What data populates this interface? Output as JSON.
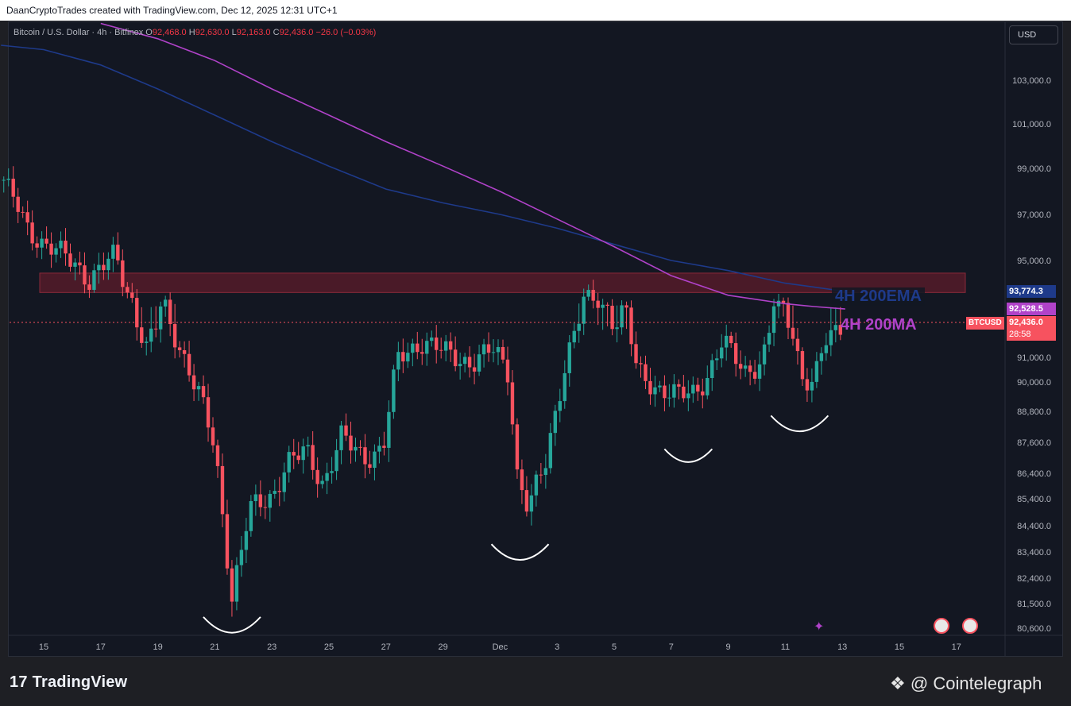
{
  "header": {
    "attribution": "DaanCryptoTrades created with TradingView.com, Dec 12, 2025 12:31 UTC+1"
  },
  "legend": {
    "symbol": "Bitcoin / U.S. Dollar · 4h · Bitfinex",
    "o_label": "O",
    "o": "92,468.0",
    "h_label": "H",
    "h": "92,630.0",
    "l_label": "L",
    "l": "92,163.0",
    "c_label": "C",
    "c": "92,436.0",
    "change": "−26.0 (−0.03%)"
  },
  "currency_button": "USD",
  "price_labels": {
    "ema": "93,774.3",
    "ma": "92,528.5",
    "ticker": "BTCUSD",
    "last": "92,436.0",
    "countdown": "28:58"
  },
  "annotations": {
    "ema_text": "4H 200EMA",
    "ma_text": "4H 200MA"
  },
  "branding": {
    "tradingview": "TradingView",
    "cointelegraph": "Cointelegraph"
  },
  "colors": {
    "up": "#26a69a",
    "down": "#f7525f",
    "ema": "#1e3a8a",
    "ma": "#b042c9",
    "zone": "#5c1f2a",
    "background": "#131722"
  },
  "chart_data": {
    "type": "candlestick",
    "timeframe": "4h",
    "x_tick_labels": [
      "15",
      "17",
      "19",
      "21",
      "23",
      "25",
      "27",
      "29",
      "Dec",
      "3",
      "5",
      "7",
      "9",
      "11",
      "13",
      "15",
      "17"
    ],
    "x_tick_days": [
      15,
      17,
      19,
      21,
      23,
      25,
      27,
      29,
      31,
      33,
      35,
      37,
      39,
      41,
      43,
      45,
      47
    ],
    "y_tick_labels": [
      "103,000.0",
      "101,000.0",
      "99,000.0",
      "97,000.0",
      "95,000.0",
      "91,000.0",
      "90,000.0",
      "88,800.0",
      "87,600.0",
      "86,400.0",
      "85,400.0",
      "84,400.0",
      "83,400.0",
      "82,400.0",
      "81,500.0",
      "80,600.0"
    ],
    "y_ticks": [
      103000,
      101000,
      99000,
      97000,
      95000,
      91000,
      90000,
      88800,
      87600,
      86400,
      85400,
      84400,
      83400,
      82400,
      81500,
      80600
    ],
    "y_anchors": [
      [
        103000,
        101
      ],
      [
        101000,
        156
      ],
      [
        99000,
        212
      ],
      [
        97000,
        270
      ],
      [
        95000,
        328
      ],
      [
        93774.3,
        367
      ],
      [
        92528.5,
        389
      ],
      [
        92436,
        406
      ],
      [
        91000,
        450
      ],
      [
        90000,
        481
      ],
      [
        88800,
        518
      ],
      [
        87600,
        557
      ],
      [
        86400,
        596
      ],
      [
        85400,
        628
      ],
      [
        84400,
        662
      ],
      [
        83400,
        695
      ],
      [
        82400,
        728
      ],
      [
        81500,
        760
      ],
      [
        80600,
        791
      ]
    ],
    "x_anchor": {
      "day": 15,
      "x": 55,
      "px_per_day": 35.9
    },
    "resistance_zone": [
      93700,
      94500
    ],
    "ema_200": [
      [
        13.5,
        104600
      ],
      [
        15,
        104400
      ],
      [
        17,
        103700
      ],
      [
        19,
        102600
      ],
      [
        21,
        101400
      ],
      [
        23,
        100200
      ],
      [
        25,
        99100
      ],
      [
        27,
        98100
      ],
      [
        29,
        97500
      ],
      [
        31,
        97000
      ],
      [
        33,
        96400
      ],
      [
        35,
        95700
      ],
      [
        37,
        95000
      ],
      [
        39,
        94600
      ],
      [
        41,
        94100
      ],
      [
        42,
        93950
      ],
      [
        43.1,
        93774
      ]
    ],
    "ma_200": [
      [
        17,
        105600
      ],
      [
        19,
        104900
      ],
      [
        21,
        103900
      ],
      [
        23,
        102600
      ],
      [
        25,
        101400
      ],
      [
        27,
        100200
      ],
      [
        29,
        99100
      ],
      [
        31,
        98000
      ],
      [
        33,
        96800
      ],
      [
        35,
        95600
      ],
      [
        37,
        94400
      ],
      [
        39,
        93500
      ],
      [
        41,
        92900
      ],
      [
        42,
        92700
      ],
      [
        43.1,
        92528
      ]
    ],
    "candle_seeds": [
      [
        13.6,
        98500
      ],
      [
        14.5,
        96200
      ],
      [
        15.5,
        95400
      ],
      [
        16.6,
        94300
      ],
      [
        17.5,
        95200
      ],
      [
        18.1,
        93200
      ],
      [
        18.6,
        91400
      ],
      [
        19.2,
        92900
      ],
      [
        19.8,
        91400
      ],
      [
        20.5,
        89300
      ],
      [
        21.0,
        87300
      ],
      [
        21.6,
        81800
      ],
      [
        22.2,
        84900
      ],
      [
        23.0,
        85500
      ],
      [
        23.5,
        86800
      ],
      [
        24.2,
        87200
      ],
      [
        24.8,
        86000
      ],
      [
        25.4,
        87800
      ],
      [
        26.2,
        87000
      ],
      [
        26.9,
        87400
      ],
      [
        27.4,
        90900
      ],
      [
        28.3,
        91700
      ],
      [
        29.2,
        91100
      ],
      [
        30.0,
        90800
      ],
      [
        30.8,
        91300
      ],
      [
        31.3,
        90400
      ],
      [
        31.6,
        86400
      ],
      [
        32.0,
        85000
      ],
      [
        32.6,
        86800
      ],
      [
        33.3,
        90900
      ],
      [
        34.0,
        93400
      ],
      [
        34.6,
        92800
      ],
      [
        35.5,
        92300
      ],
      [
        35.8,
        90400
      ],
      [
        36.5,
        89800
      ],
      [
        37.2,
        89400
      ],
      [
        37.8,
        89600
      ],
      [
        38.3,
        90300
      ],
      [
        38.8,
        91600
      ],
      [
        39.6,
        90500
      ],
      [
        40.2,
        90800
      ],
      [
        40.6,
        92800
      ],
      [
        41.2,
        92500
      ],
      [
        41.6,
        90200
      ],
      [
        42.0,
        89900
      ],
      [
        42.4,
        91600
      ],
      [
        43.0,
        92436
      ]
    ],
    "lows": [
      [
        "Nov 21",
        81300
      ],
      [
        "Dec 1",
        84000
      ],
      [
        "Dec 7",
        87700
      ],
      [
        "Dec 11",
        88900
      ]
    ]
  }
}
